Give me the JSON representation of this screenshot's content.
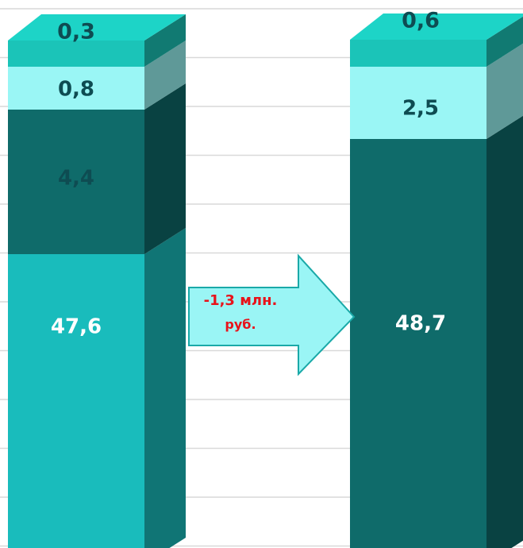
{
  "chart_data": {
    "type": "stacked-bar-3d",
    "categories": [
      "",
      ""
    ],
    "series": [
      {
        "values": [
          47.6,
          48.7
        ],
        "labels": [
          "47,6",
          "48,7"
        ]
      },
      {
        "values": [
          4.4,
          0
        ],
        "labels": [
          "4,4",
          ""
        ]
      },
      {
        "values": [
          0.8,
          2.5
        ],
        "labels": [
          "0,8",
          "2,5"
        ]
      },
      {
        "values": [
          0.3,
          0.6
        ],
        "labels": [
          "0,3",
          "0,6"
        ]
      }
    ],
    "annotation": {
      "line1": "-1,3 млн.",
      "line2": "руб."
    },
    "grid": true,
    "colors": {
      "seg_base": "#19bcbc",
      "seg_dark": "#0f6b6a",
      "seg_light": "#9af6f5",
      "seg_top": "#1bc4b8",
      "label_dark": "#0e4c52",
      "label_white": "#ffffff",
      "arrow_fill": "#9af5f5",
      "arrow_stroke": "#1aa9a8",
      "annotation_text": "#e8131b",
      "grid": "#d9d9d9"
    }
  }
}
